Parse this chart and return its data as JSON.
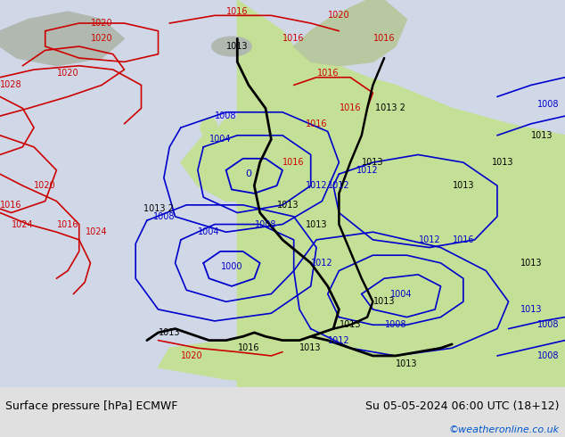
{
  "title_left": "Surface pressure [hPa] ECMWF",
  "title_right": "Su 05-05-2024 06:00 UTC (18+12)",
  "credit": "©weatheronline.co.uk",
  "bg_ocean": "#d8e8f0",
  "bg_land_green": "#c8e8a0",
  "bg_land_grey": "#b8b8b8",
  "bottom_bar_color": "#e0e0e0",
  "text_color_black": "#000000",
  "credit_color": "#0055cc",
  "isobar_black": "#000000",
  "isobar_red": "#cc0000",
  "isobar_blue": "#0000cc",
  "figsize": [
    6.34,
    4.9
  ],
  "dpi": 100
}
